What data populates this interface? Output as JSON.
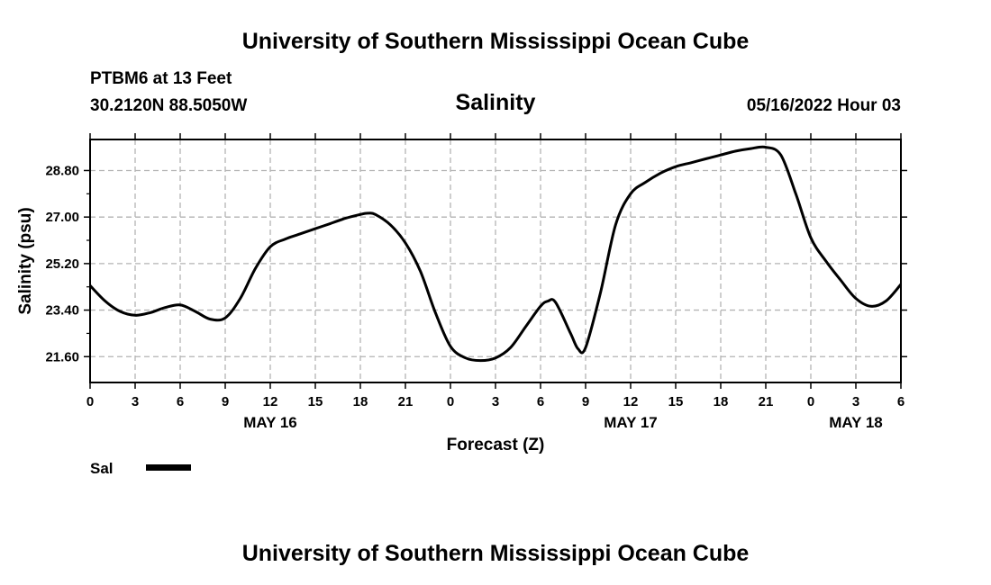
{
  "header": {
    "title_top": "University of Southern Mississippi Ocean Cube",
    "title_bottom": "University of Southern Mississippi Ocean Cube",
    "station": "PTBM6 at 13 Feet",
    "coords": "30.2120N  88.5050W",
    "timestamp": "05/16/2022 Hour 03"
  },
  "chart_data": {
    "type": "line",
    "title": "Salinity",
    "xlabel": "Forecast (Z)",
    "ylabel": "Salinity (psu)",
    "xlim": [
      0,
      54
    ],
    "ylim": [
      20.6,
      30.0
    ],
    "x_ticks": [
      0,
      3,
      6,
      9,
      12,
      15,
      18,
      21,
      24,
      27,
      30,
      33,
      36,
      39,
      42,
      45,
      48,
      51,
      54
    ],
    "x_tick_labels": [
      "0",
      "3",
      "6",
      "9",
      "12",
      "15",
      "18",
      "21",
      "0",
      "3",
      "6",
      "9",
      "12",
      "15",
      "18",
      "21",
      "0",
      "3",
      "6"
    ],
    "day_labels": [
      {
        "x": 12,
        "label": "MAY 16"
      },
      {
        "x": 36,
        "label": "MAY 17"
      },
      {
        "x": 51,
        "label": "MAY 18"
      }
    ],
    "y_ticks": [
      21.6,
      23.4,
      25.2,
      27.0,
      28.8
    ],
    "y_tick_labels": [
      "21.60",
      "23.40",
      "25.20",
      "27.00",
      "28.80"
    ],
    "grid": true,
    "legend": [
      {
        "name": "Sal",
        "color": "#000000"
      }
    ],
    "series": [
      {
        "name": "Sal",
        "color": "#000000",
        "x": [
          0,
          1,
          2,
          3,
          4,
          5,
          6,
          7,
          8,
          9,
          10,
          11,
          12,
          13,
          14,
          15,
          16,
          17,
          18,
          18.5,
          19,
          20,
          21,
          22,
          23,
          24,
          25,
          26,
          27,
          28,
          29,
          30,
          30.5,
          31,
          32,
          32.5,
          33,
          34,
          35,
          36,
          37,
          38,
          39,
          40,
          41,
          42,
          43,
          44,
          45,
          46,
          47,
          48,
          49,
          50,
          51,
          52,
          53,
          54
        ],
        "y": [
          24.35,
          23.75,
          23.35,
          23.2,
          23.3,
          23.5,
          23.6,
          23.35,
          23.05,
          23.1,
          23.85,
          25.0,
          25.85,
          26.15,
          26.35,
          26.55,
          26.75,
          26.95,
          27.1,
          27.15,
          27.1,
          26.7,
          26.0,
          24.9,
          23.3,
          22.0,
          21.55,
          21.45,
          21.55,
          21.95,
          22.75,
          23.55,
          23.75,
          23.7,
          22.5,
          21.9,
          21.95,
          24.1,
          26.7,
          27.9,
          28.35,
          28.7,
          28.95,
          29.1,
          29.25,
          29.4,
          29.55,
          29.65,
          29.7,
          29.4,
          27.9,
          26.2,
          25.3,
          24.55,
          23.85,
          23.55,
          23.75,
          24.4
        ]
      }
    ]
  }
}
